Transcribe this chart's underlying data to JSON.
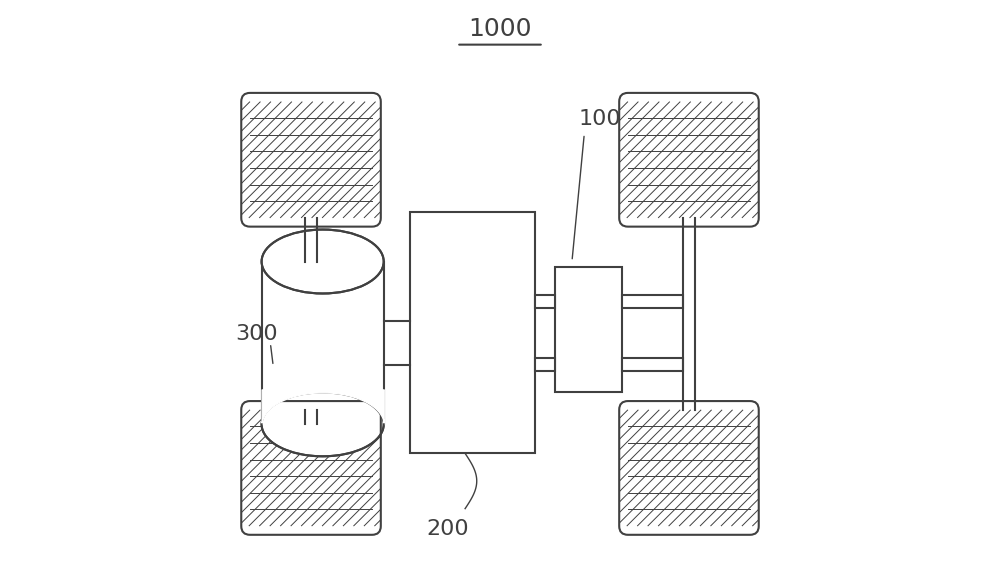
{
  "title": "1000",
  "label_300": "300",
  "label_200": "200",
  "label_100": "100",
  "bg_color": "#ffffff",
  "line_color": "#404040",
  "title_fontsize": 18,
  "label_fontsize": 16
}
